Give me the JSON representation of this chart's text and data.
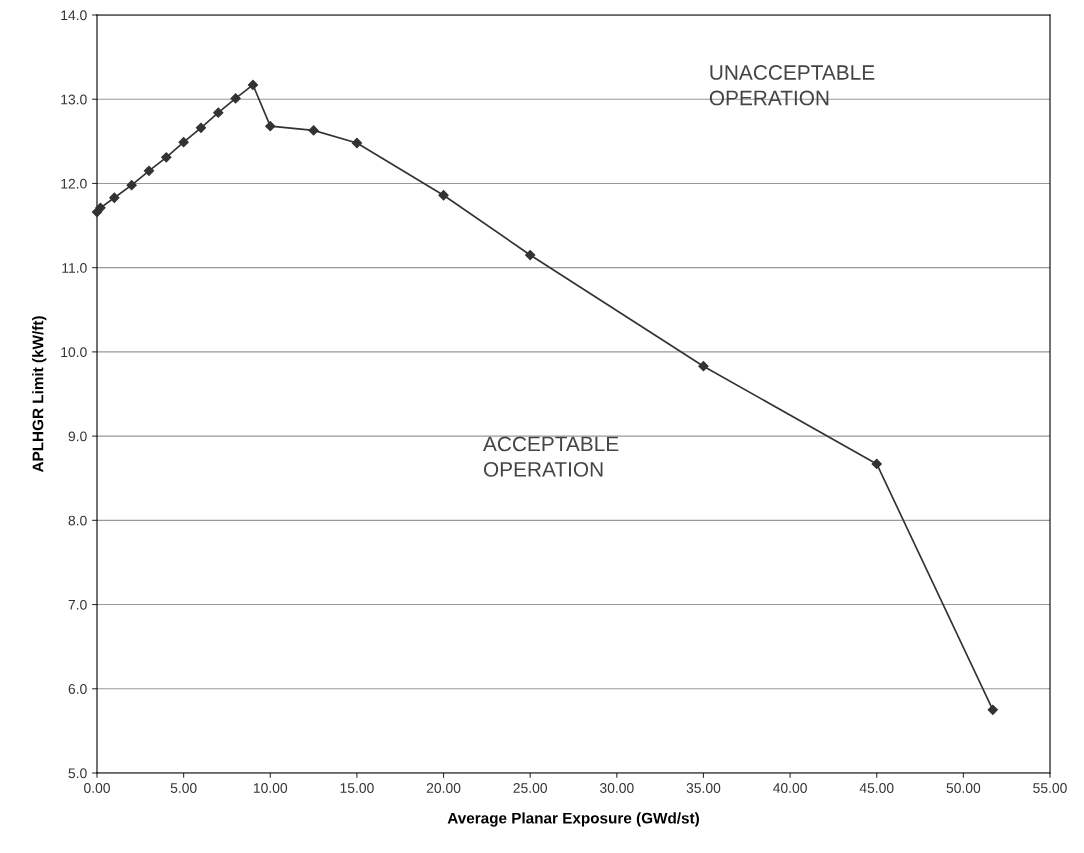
{
  "chart_data": {
    "type": "line",
    "xlabel": "Average Planar Exposure (GWd/st)",
    "ylabel": "APLHGR Limit (kW/ft)",
    "x": [
      0.0,
      0.2,
      1.0,
      2.0,
      3.0,
      4.0,
      5.0,
      6.0,
      7.0,
      8.0,
      9.0,
      10.0,
      12.5,
      15.0,
      20.0,
      25.0,
      35.0,
      45.0,
      51.7
    ],
    "series": [
      {
        "color": "#333333",
        "values": [
          11.66,
          11.71,
          11.83,
          11.98,
          12.15,
          12.31,
          12.49,
          12.66,
          12.84,
          13.01,
          13.17,
          12.68,
          12.63,
          12.48,
          11.86,
          11.15,
          9.83,
          8.67,
          5.75
        ]
      }
    ],
    "xlim": [
      0,
      55
    ],
    "ylim": [
      5.0,
      14.0
    ],
    "xticks": [
      {
        "value": 0,
        "label": "0.00"
      },
      {
        "value": 5,
        "label": "5.00"
      },
      {
        "value": 10,
        "label": "10.00"
      },
      {
        "value": 15,
        "label": "15.00"
      },
      {
        "value": 20,
        "label": "20.00"
      },
      {
        "value": 25,
        "label": "25.00"
      },
      {
        "value": 30,
        "label": "30.00"
      },
      {
        "value": 35,
        "label": "35.00"
      },
      {
        "value": 40,
        "label": "40.00"
      },
      {
        "value": 45,
        "label": "45.00"
      },
      {
        "value": 50,
        "label": "50.00"
      },
      {
        "value": 55,
        "label": "55.00"
      }
    ],
    "yticks": [
      {
        "value": 5,
        "label": "5.0"
      },
      {
        "value": 6,
        "label": "6.0"
      },
      {
        "value": 7,
        "label": "7.0"
      },
      {
        "value": 8,
        "label": "8.0"
      },
      {
        "value": 9,
        "label": "9.0"
      },
      {
        "value": 10,
        "label": "10.0"
      },
      {
        "value": 11,
        "label": "11.0"
      },
      {
        "value": 12,
        "label": "12.0"
      },
      {
        "value": 13,
        "label": "13.0"
      },
      {
        "value": 14,
        "label": "14.0"
      }
    ],
    "grid": "y",
    "marker": "diamond",
    "line_style": "solid",
    "annotations": [
      "UNACCEPTABLE\nOPERATION",
      "ACCEPTABLE\nOPERATION"
    ]
  }
}
